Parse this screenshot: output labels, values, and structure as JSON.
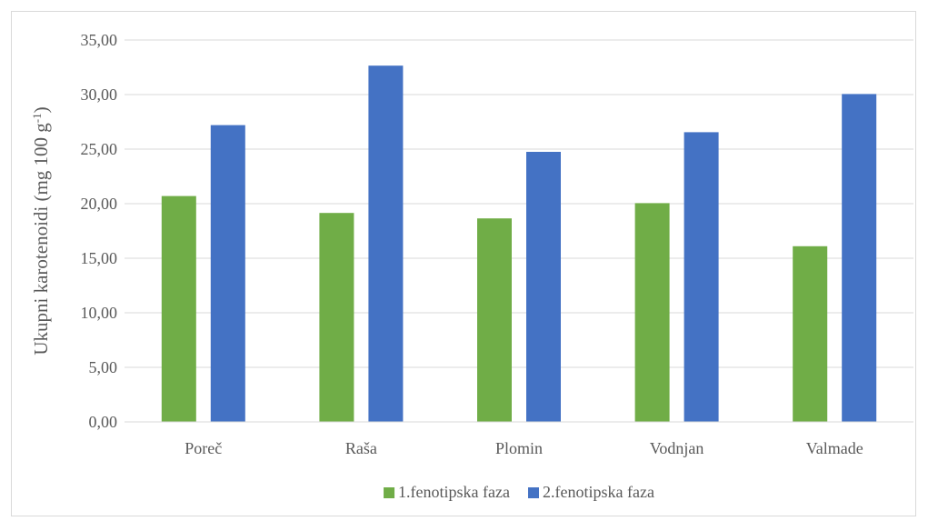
{
  "chart_data": {
    "type": "bar",
    "categories": [
      "Poreč",
      "Raša",
      "Plomin",
      "Vodnjan",
      "Valmade"
    ],
    "series": [
      {
        "name": "1.fenotipska faza",
        "color": "#70ad47",
        "values": [
          20.7,
          19.15,
          18.65,
          20.05,
          16.1
        ]
      },
      {
        "name": "2.fenotipska faza",
        "color": "#4472c4",
        "values": [
          27.2,
          32.65,
          24.75,
          26.55,
          30.05
        ]
      }
    ],
    "title": "",
    "xlabel": "",
    "ylabel": "Ukupni karotenoidi (mg 100 g",
    "ylabel_superscript": "-1",
    "ylabel_suffix": ")",
    "ylim": [
      0,
      35
    ],
    "yticks": [
      "0,00",
      "5,00",
      "10,00",
      "15,00",
      "20,00",
      "25,00",
      "30,00",
      "35,00"
    ],
    "grid": true,
    "legend_position": "bottom"
  }
}
